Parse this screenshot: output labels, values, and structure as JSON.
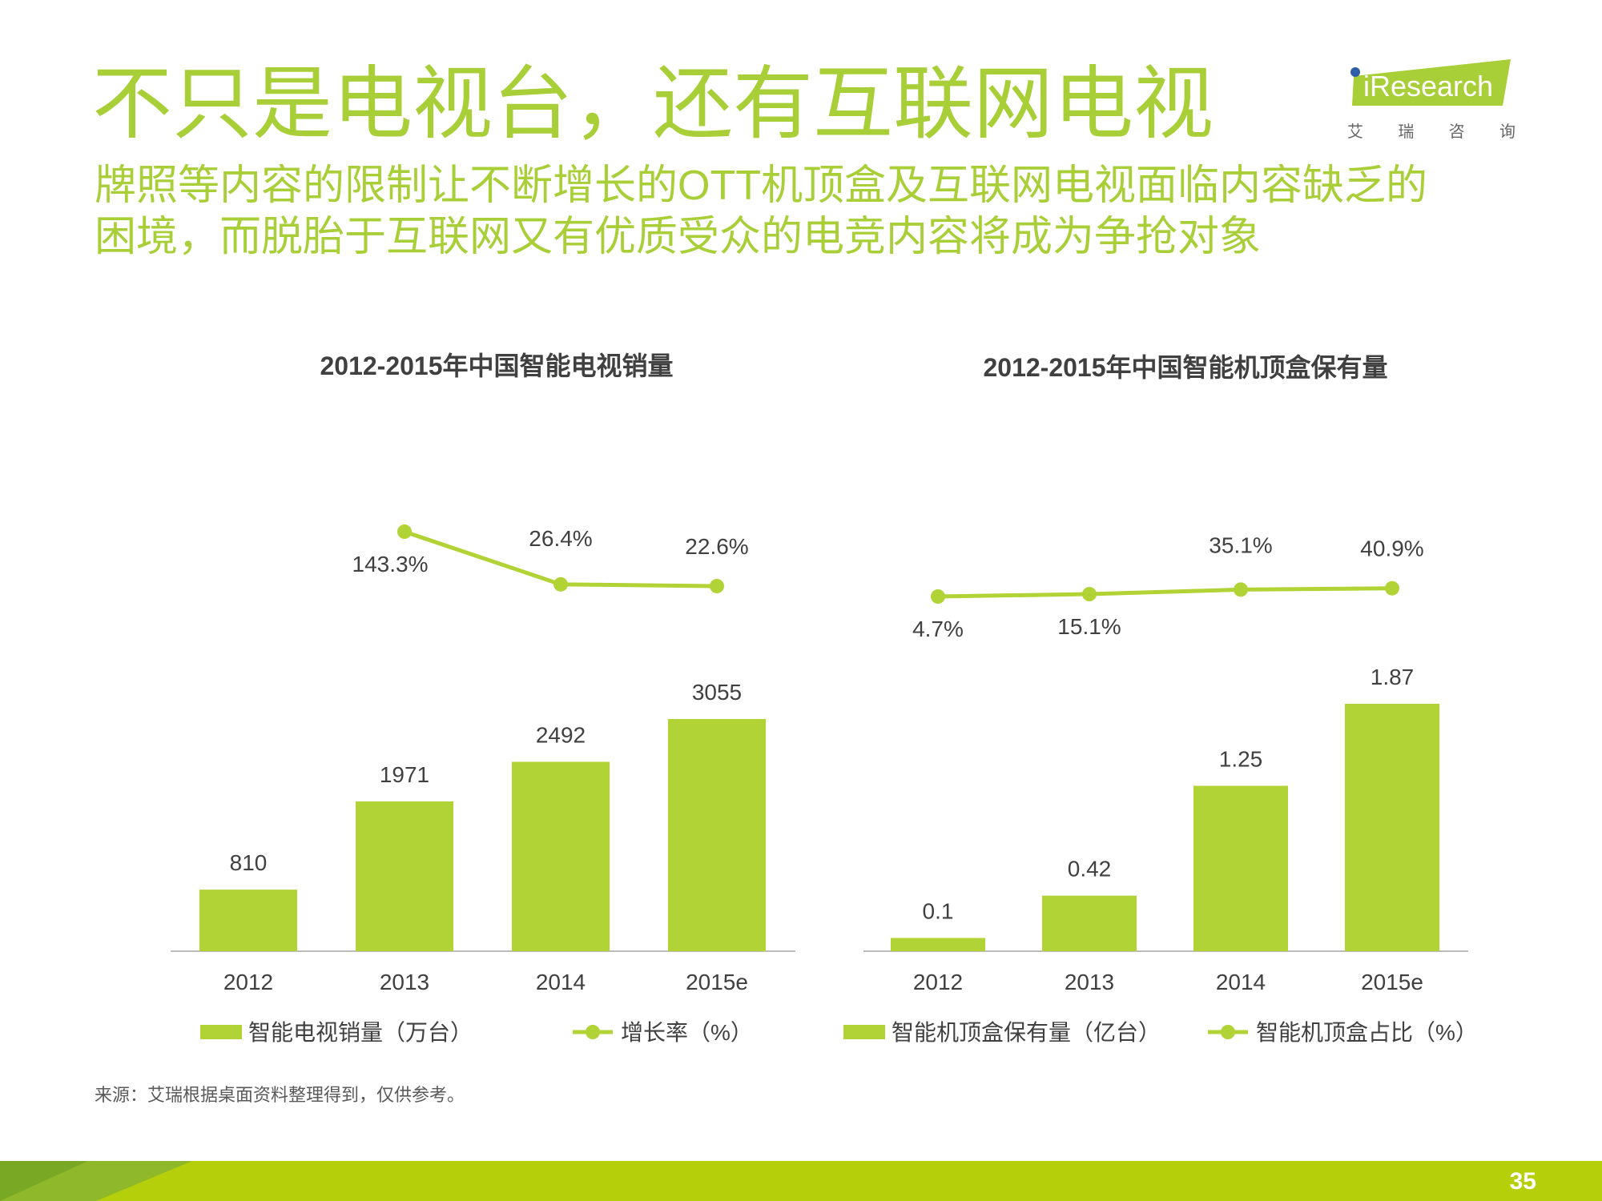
{
  "header": {
    "title": "不只是电视台，还有互联网电视",
    "subtitle_line1": "牌照等内容的限制让不断增长的OTT机顶盒及互联网电视面临内容缺乏的",
    "subtitle_line2": "困境，而脱胎于互联网又有优质受众的电竞内容将成为争抢对象"
  },
  "logo": {
    "brand": "iResearch",
    "cn": [
      "艾",
      "瑞",
      "咨",
      "询"
    ]
  },
  "colors": {
    "accent": "#a8cf38",
    "bar": "#b1d335",
    "text": "#404040",
    "footer": "#b5cf0a"
  },
  "chart_data": [
    {
      "type": "bar",
      "title": "2012-2015年中国智能电视销量",
      "categories": [
        "2012",
        "2013",
        "2014",
        "2015e"
      ],
      "series": [
        {
          "name": "智能电视销量（万台）",
          "type": "bar",
          "values": [
            810,
            1971,
            2492,
            3055
          ],
          "labels": [
            "810",
            "1971",
            "2492",
            "3055"
          ]
        },
        {
          "name": "增长率（%）",
          "type": "line",
          "values": [
            null,
            143.3,
            26.4,
            22.6
          ],
          "labels": [
            "",
            "143.3%",
            "26.4%",
            "22.6%"
          ]
        }
      ]
    },
    {
      "type": "bar",
      "title": "2012-2015年中国智能机顶盒保有量",
      "categories": [
        "2012",
        "2013",
        "2014",
        "2015e"
      ],
      "series": [
        {
          "name": "智能机顶盒保有量（亿台）",
          "type": "bar",
          "values": [
            0.1,
            0.42,
            1.25,
            1.87
          ],
          "labels": [
            "0.1",
            "0.42",
            "1.25",
            "1.87"
          ]
        },
        {
          "name": "智能机顶盒占比（%）",
          "type": "line",
          "values": [
            4.7,
            15.1,
            35.1,
            40.9
          ],
          "labels": [
            "4.7%",
            "15.1%",
            "35.1%",
            "40.9%"
          ]
        }
      ]
    }
  ],
  "source": "来源：艾瑞根据桌面资料整理得到，仅供参考。",
  "page_number": "35"
}
